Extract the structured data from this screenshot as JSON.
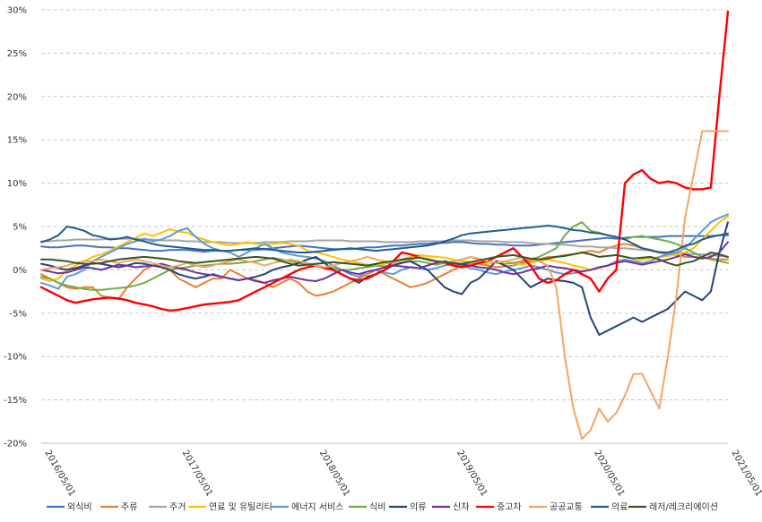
{
  "chart_data": {
    "type": "line",
    "ylim": [
      -20,
      30
    ],
    "y_ticks": [
      "-20%",
      "-15%",
      "-10%",
      "-5%",
      "0%",
      "5%",
      "10%",
      "15%",
      "20%",
      "25%",
      "30%"
    ],
    "x_start": "2016/05/01",
    "x_end": "2021/05/01",
    "x_ticks": [
      "2016/05/01",
      "2017/05/01",
      "2018/05/01",
      "2019/05/01",
      "2020/05/01",
      "2021/05/01"
    ],
    "grid": "horizontal dashed",
    "legend_position": "bottom",
    "series": [
      {
        "name": "외식비",
        "color": "#4472C4",
        "values": [
          2.7,
          2.6,
          2.6,
          2.7,
          2.8,
          2.8,
          2.7,
          2.6,
          2.6,
          2.5,
          2.5,
          2.4,
          2.3,
          2.2,
          2.2,
          2.3,
          2.3,
          2.3,
          2.2,
          2.1,
          2.2,
          2.2,
          2.2,
          2.3,
          2.3,
          2.3,
          2.4,
          2.5,
          2.6,
          2.7,
          2.8,
          2.7,
          2.6,
          2.5,
          2.4,
          2.4,
          2.4,
          2.5,
          2.6,
          2.6,
          2.7,
          2.8,
          2.8,
          2.9,
          3.0,
          3.0,
          3.1,
          3.1,
          3.2,
          3.2,
          3.1,
          3.0,
          3.0,
          2.9,
          2.9,
          2.8,
          2.8,
          2.8,
          2.9,
          3.0,
          3.1,
          3.2,
          3.3,
          3.4,
          3.5,
          3.6,
          3.7,
          3.6,
          3.7,
          3.8,
          3.8,
          3.8,
          3.8,
          3.9,
          3.9,
          3.9,
          3.9,
          3.9,
          3.9,
          4.0,
          4.0
        ]
      },
      {
        "name": "주류",
        "color": "#ED7D31",
        "values": [
          -0.5,
          -1.0,
          -1.5,
          -2.0,
          -2.2,
          -2.0,
          -2.0,
          -3.0,
          -3.2,
          -3.4,
          -2.0,
          -1.0,
          0.0,
          0.5,
          0.5,
          0.0,
          -1.0,
          -1.5,
          -2.0,
          -1.5,
          -1.0,
          -1.0,
          0.0,
          -0.5,
          -1.0,
          -1.2,
          -1.5,
          -2.0,
          -1.5,
          -1.0,
          -1.5,
          -2.5,
          -3.0,
          -2.8,
          -2.5,
          -2.0,
          -1.5,
          -1.0,
          -0.5,
          0.0,
          -0.5,
          -1.0,
          -1.5,
          -2.0,
          -1.8,
          -1.5,
          -1.0,
          -0.5,
          0.0,
          0.5,
          0.8,
          0.7,
          0.5,
          0.3,
          0.4,
          0.5,
          0.8,
          1.0,
          1.2,
          1.5,
          1.5,
          1.7,
          1.8,
          2.0,
          2.2,
          2.0,
          2.5,
          2.8,
          3.0,
          2.8,
          2.5,
          2.2,
          2.0,
          1.8,
          1.7,
          1.5,
          1.5,
          1.4,
          1.3,
          1.2,
          1.2
        ]
      },
      {
        "name": "주거",
        "color": "#A5A5A5",
        "values": [
          3.3,
          3.3,
          3.4,
          3.4,
          3.5,
          3.5,
          3.5,
          3.5,
          3.6,
          3.6,
          3.6,
          3.6,
          3.5,
          3.5,
          3.4,
          3.4,
          3.4,
          3.3,
          3.3,
          3.2,
          3.2,
          3.2,
          3.1,
          3.1,
          3.1,
          3.1,
          3.2,
          3.2,
          3.2,
          3.3,
          3.3,
          3.3,
          3.4,
          3.4,
          3.4,
          3.4,
          3.3,
          3.3,
          3.3,
          3.3,
          3.2,
          3.2,
          3.2,
          3.2,
          3.3,
          3.3,
          3.3,
          3.3,
          3.4,
          3.4,
          3.4,
          3.3,
          3.3,
          3.3,
          3.2,
          3.2,
          3.2,
          3.1,
          3.0,
          3.0,
          2.9,
          2.9,
          2.8,
          2.7,
          2.7,
          2.6,
          2.6,
          2.5,
          2.5,
          2.4,
          2.3,
          2.2,
          2.1,
          2.0,
          2.0,
          1.9,
          1.8,
          1.8,
          1.7,
          1.6,
          1.5
        ]
      },
      {
        "name": "연료 및 유틸리티",
        "color": "#FFC000",
        "values": [
          -1.0,
          -1.3,
          -1.0,
          0.0,
          0.5,
          1.0,
          1.5,
          1.8,
          2.2,
          2.7,
          3.2,
          3.7,
          4.2,
          3.9,
          4.3,
          4.7,
          4.4,
          4.3,
          3.8,
          3.5,
          3.2,
          3.0,
          2.8,
          3.0,
          3.2,
          3.0,
          2.9,
          3.0,
          3.1,
          3.0,
          2.8,
          2.2,
          2.0,
          1.8,
          1.5,
          1.2,
          1.0,
          0.8,
          0.6,
          0.5,
          0.7,
          0.9,
          1.2,
          1.5,
          1.7,
          1.6,
          1.5,
          1.4,
          1.2,
          1.0,
          0.9,
          0.8,
          0.7,
          0.9,
          1.0,
          0.8,
          0.6,
          0.8,
          1.0,
          1.2,
          1.0,
          0.8,
          0.5,
          0.3,
          0.0,
          0.2,
          0.5,
          0.8,
          1.0,
          1.0,
          1.2,
          1.3,
          1.5,
          1.6,
          1.8,
          2.0,
          2.5,
          3.5,
          4.5,
          5.5,
          6.2
        ]
      },
      {
        "name": "에너지 서비스",
        "color": "#5B9BD5",
        "values": [
          -1.5,
          -1.8,
          -2.2,
          -0.8,
          -0.5,
          0.0,
          1.0,
          1.5,
          2.0,
          2.5,
          3.0,
          3.3,
          3.6,
          3.3,
          3.5,
          3.9,
          4.5,
          4.8,
          3.8,
          3.0,
          2.5,
          2.2,
          2.0,
          1.5,
          2.0,
          2.5,
          3.0,
          2.5,
          2.0,
          1.8,
          1.6,
          1.5,
          1.3,
          1.0,
          0.5,
          0.0,
          -0.5,
          -0.8,
          -0.2,
          0.0,
          -0.3,
          -0.5,
          0.0,
          0.3,
          0.2,
          0.0,
          0.2,
          0.5,
          0.7,
          0.5,
          0.2,
          0.0,
          -0.3,
          -0.5,
          -0.2,
          0.0,
          0.2,
          0.5,
          0.3,
          0.0,
          -0.3,
          -0.5,
          -0.4,
          -0.2,
          0.0,
          0.3,
          0.5,
          1.0,
          1.2,
          1.0,
          0.8,
          1.0,
          1.5,
          1.8,
          2.0,
          2.5,
          3.5,
          4.5,
          5.5,
          6.0,
          6.4
        ]
      },
      {
        "name": "식비",
        "color": "#70AD47",
        "values": [
          -0.8,
          -1.0,
          -1.5,
          -1.8,
          -2.0,
          -2.2,
          -2.3,
          -2.3,
          -2.2,
          -2.1,
          -2.0,
          -1.8,
          -1.5,
          -1.0,
          -0.5,
          0.0,
          0.2,
          0.3,
          0.5,
          0.5,
          0.6,
          0.7,
          0.7,
          0.8,
          0.9,
          1.0,
          1.2,
          1.4,
          1.2,
          1.0,
          0.8,
          0.6,
          0.5,
          0.3,
          0.2,
          0.0,
          0.0,
          0.2,
          0.3,
          0.5,
          0.4,
          0.6,
          0.8,
          1.0,
          1.0,
          0.8,
          0.6,
          0.8,
          1.0,
          1.2,
          1.5,
          1.2,
          1.0,
          0.8,
          0.7,
          0.8,
          1.0,
          1.2,
          1.5,
          2.0,
          2.5,
          4.0,
          5.0,
          5.5,
          4.5,
          4.3,
          4.0,
          3.8,
          3.5,
          3.8,
          3.9,
          3.7,
          3.5,
          3.3,
          3.0,
          2.5,
          2.0,
          1.5,
          1.2,
          1.0,
          0.8
        ]
      },
      {
        "name": "의류",
        "color": "#264478",
        "values": [
          0.7,
          0.5,
          0.2,
          0.0,
          0.2,
          0.5,
          0.8,
          0.7,
          0.5,
          0.3,
          0.5,
          0.8,
          0.7,
          0.5,
          0.3,
          0.0,
          -0.5,
          -0.8,
          -1.0,
          -0.8,
          -0.5,
          -0.8,
          -1.0,
          -1.2,
          -1.0,
          -0.8,
          -0.5,
          0.0,
          0.3,
          0.5,
          0.8,
          1.2,
          1.5,
          0.8,
          0.0,
          -0.5,
          -1.0,
          -1.5,
          -0.8,
          -0.5,
          0.0,
          0.5,
          0.8,
          1.0,
          0.5,
          0.0,
          -1.0,
          -2.0,
          -2.5,
          -2.8,
          -1.5,
          -1.0,
          0.0,
          1.0,
          0.5,
          0.0,
          -1.0,
          -2.0,
          -1.5,
          -1.0,
          -1.2,
          -1.3,
          -1.5,
          -2.0,
          -5.5,
          -7.5,
          -7.0,
          -6.5,
          -6.0,
          -5.5,
          -6.0,
          -5.5,
          -5.0,
          -4.5,
          -3.5,
          -2.5,
          -3.0,
          -3.5,
          -2.5,
          2.0,
          5.5
        ]
      },
      {
        "name": "신차",
        "color": "#7030A0",
        "values": [
          0.0,
          -0.2,
          -0.4,
          -0.3,
          0.0,
          0.3,
          0.2,
          0.0,
          0.3,
          0.6,
          0.5,
          0.3,
          0.4,
          0.5,
          0.7,
          0.4,
          0.2,
          0.0,
          -0.3,
          -0.5,
          -0.6,
          -0.8,
          -1.0,
          -1.2,
          -1.0,
          -1.3,
          -1.5,
          -1.2,
          -1.0,
          -0.8,
          -1.0,
          -1.2,
          -1.3,
          -1.0,
          -0.5,
          0.0,
          -0.3,
          -0.5,
          -0.2,
          0.0,
          0.3,
          0.5,
          0.4,
          0.3,
          0.2,
          0.5,
          0.8,
          1.0,
          0.8,
          0.6,
          0.5,
          0.3,
          0.2,
          0.0,
          -0.3,
          -0.5,
          -0.3,
          0.0,
          0.2,
          0.5,
          0.3,
          0.2,
          0.0,
          -0.2,
          0.0,
          0.3,
          0.5,
          0.8,
          1.0,
          0.8,
          0.6,
          0.8,
          1.0,
          1.2,
          1.5,
          1.8,
          1.5,
          1.3,
          1.5,
          2.0,
          3.2
        ]
      },
      {
        "name": "중고차",
        "color": "#FF0000",
        "values": [
          -2.0,
          -2.5,
          -3.0,
          -3.5,
          -3.8,
          -3.6,
          -3.4,
          -3.3,
          -3.2,
          -3.3,
          -3.5,
          -3.8,
          -4.0,
          -4.2,
          -4.5,
          -4.7,
          -4.6,
          -4.4,
          -4.2,
          -4.0,
          -3.9,
          -3.8,
          -3.7,
          -3.5,
          -3.0,
          -2.5,
          -2.0,
          -1.5,
          -1.0,
          -0.5,
          0.0,
          0.3,
          0.5,
          0.2,
          0.0,
          -0.5,
          -1.0,
          -1.2,
          -1.0,
          -0.5,
          0.0,
          1.0,
          2.0,
          1.8,
          1.5,
          1.2,
          1.0,
          0.8,
          0.5,
          0.3,
          0.5,
          0.8,
          1.0,
          1.5,
          2.0,
          2.5,
          1.5,
          0.5,
          -1.0,
          -1.5,
          -1.2,
          -0.5,
          0.0,
          -0.5,
          -1.0,
          -2.5,
          -1.0,
          0.0,
          10.0,
          11.0,
          11.5,
          10.5,
          10.0,
          10.2,
          10.0,
          9.5,
          9.3,
          9.3,
          9.5,
          20.0,
          29.8
        ]
      },
      {
        "name": "공공교통",
        "color": "#F4A460",
        "values": [
          0.0,
          0.2,
          0.3,
          0.5,
          0.8,
          1.0,
          1.0,
          1.2,
          1.0,
          0.8,
          1.0,
          1.2,
          1.0,
          0.8,
          0.5,
          0.3,
          0.5,
          0.8,
          0.5,
          0.3,
          0.5,
          0.8,
          1.0,
          1.2,
          1.0,
          0.8,
          0.5,
          0.8,
          1.0,
          1.2,
          1.0,
          0.8,
          0.5,
          0.3,
          0.5,
          0.8,
          1.0,
          1.2,
          1.5,
          1.2,
          1.0,
          0.8,
          1.0,
          1.2,
          1.5,
          1.3,
          1.0,
          0.8,
          1.0,
          1.2,
          1.5,
          1.3,
          1.0,
          0.8,
          1.0,
          1.2,
          1.5,
          1.2,
          1.0,
          0.5,
          -2.0,
          -10.0,
          -16.0,
          -19.5,
          -18.5,
          -16.0,
          -17.5,
          -16.5,
          -14.5,
          -12.0,
          -12.0,
          -14.0,
          -16.0,
          -10.0,
          -3.0,
          6.0,
          11.0,
          16.0,
          16.0,
          16.0,
          16.0
        ]
      },
      {
        "name": "의료",
        "color": "#1F5D8C",
        "values": [
          3.2,
          3.5,
          4.0,
          5.0,
          4.8,
          4.5,
          4.0,
          3.8,
          3.5,
          3.6,
          3.8,
          3.5,
          3.3,
          3.0,
          2.8,
          2.7,
          2.6,
          2.5,
          2.4,
          2.3,
          2.3,
          2.2,
          2.2,
          2.3,
          2.4,
          2.5,
          2.4,
          2.3,
          2.2,
          2.1,
          2.0,
          2.0,
          2.1,
          2.2,
          2.3,
          2.4,
          2.5,
          2.4,
          2.3,
          2.2,
          2.3,
          2.4,
          2.5,
          2.6,
          2.7,
          2.8,
          3.0,
          3.3,
          3.6,
          4.0,
          4.2,
          4.3,
          4.4,
          4.5,
          4.6,
          4.7,
          4.8,
          4.9,
          5.0,
          5.1,
          5.0,
          4.8,
          4.6,
          4.5,
          4.3,
          4.2,
          4.0,
          3.8,
          3.5,
          3.0,
          2.5,
          2.3,
          2.0,
          2.0,
          2.3,
          2.8,
          3.0,
          3.5,
          3.8,
          4.0,
          4.2
        ]
      },
      {
        "name": "레저/레크리에이션",
        "color": "#375623",
        "values": [
          1.2,
          1.2,
          1.1,
          1.0,
          0.8,
          0.7,
          0.7,
          0.8,
          1.0,
          1.2,
          1.3,
          1.4,
          1.5,
          1.4,
          1.3,
          1.2,
          1.0,
          0.9,
          0.8,
          0.9,
          1.0,
          1.1,
          1.2,
          1.3,
          1.4,
          1.5,
          1.4,
          1.3,
          1.0,
          0.7,
          0.5,
          0.6,
          0.7,
          0.8,
          0.9,
          0.8,
          0.7,
          0.6,
          0.5,
          0.7,
          0.9,
          1.0,
          1.2,
          1.3,
          1.4,
          1.2,
          1.0,
          0.9,
          0.8,
          0.7,
          0.9,
          1.1,
          1.3,
          1.5,
          1.6,
          1.7,
          1.5,
          1.3,
          1.2,
          1.3,
          1.5,
          1.6,
          1.8,
          2.0,
          1.8,
          1.5,
          1.6,
          1.7,
          1.5,
          1.3,
          1.4,
          1.5,
          1.2,
          0.8,
          0.5,
          0.8,
          1.0,
          1.5,
          2.0,
          1.8,
          1.5
        ]
      }
    ]
  }
}
